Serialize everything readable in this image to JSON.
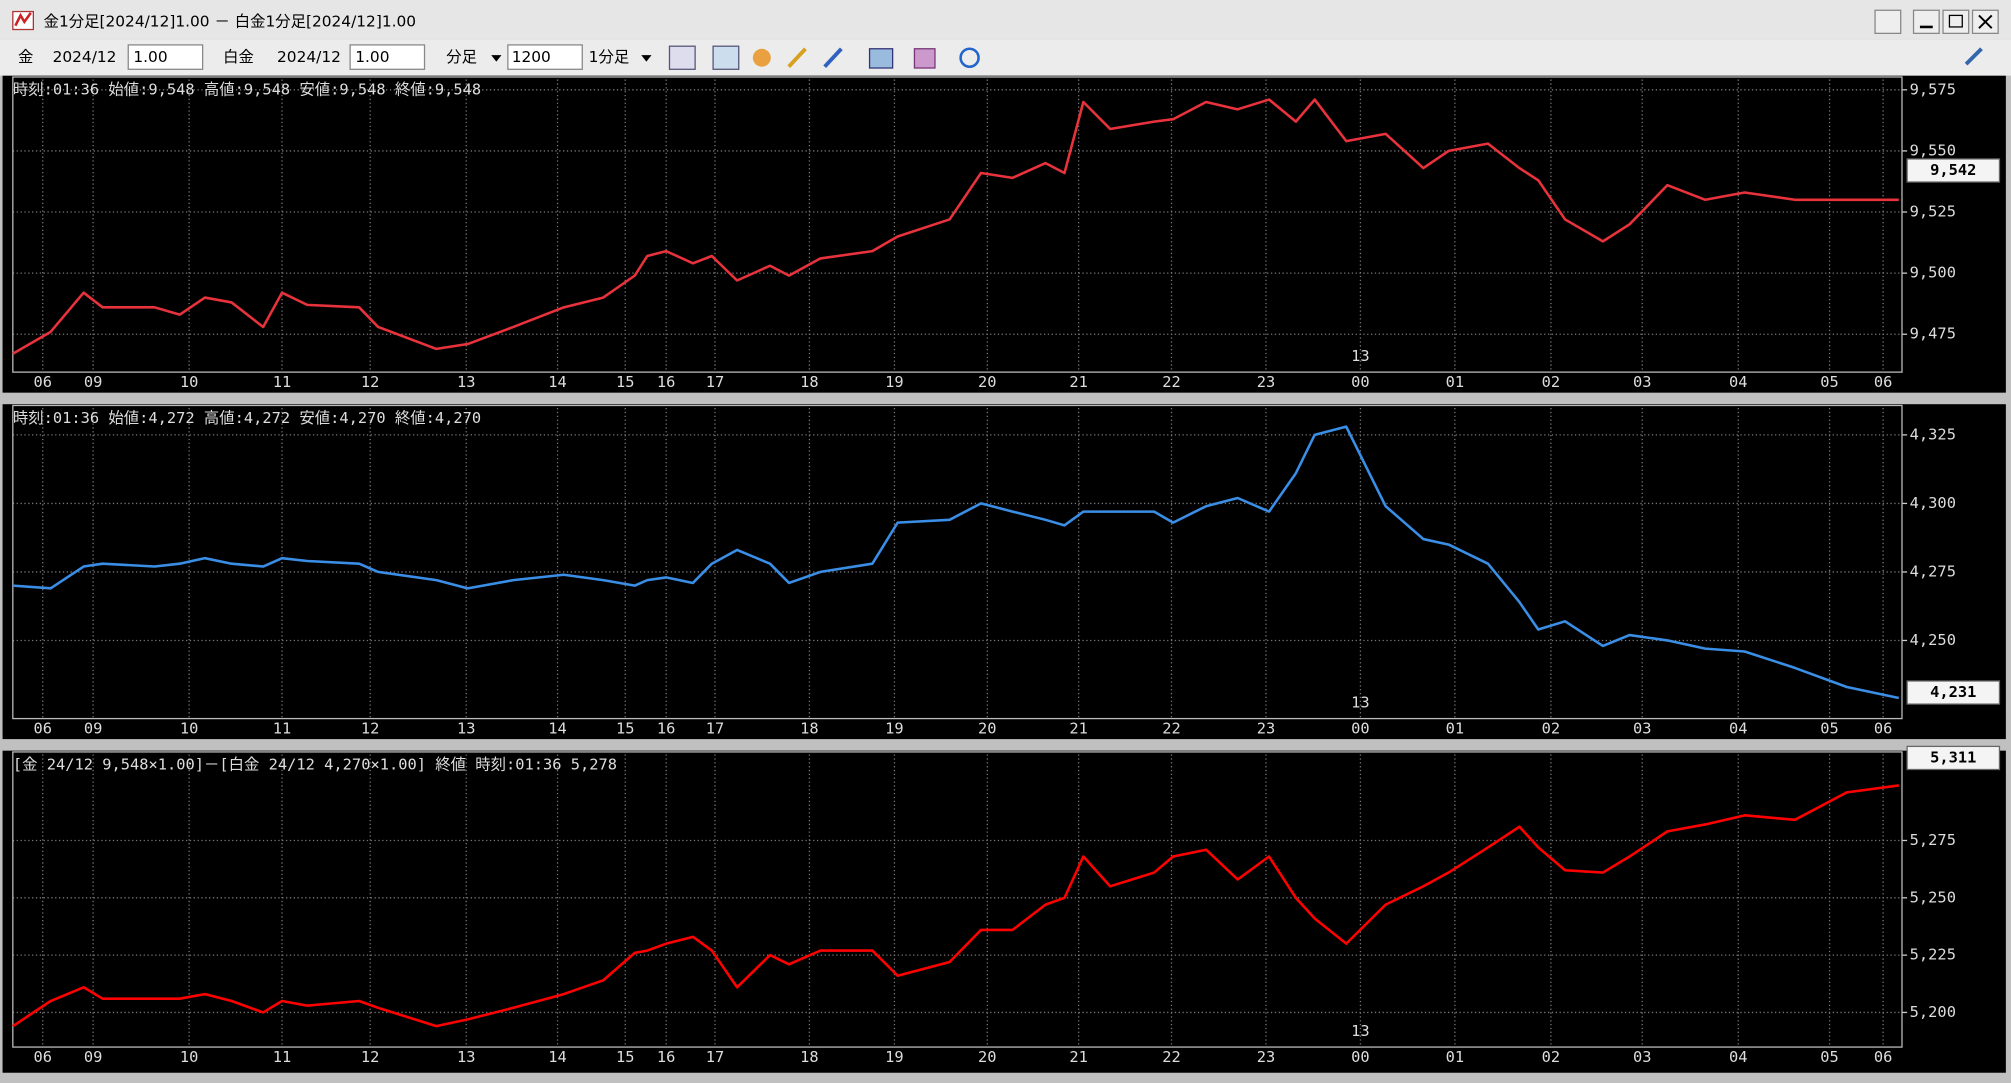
{
  "window": {
    "title": "金1分足[2024/12]1.00 － 白金1分足[2024/12]1.00"
  },
  "toolbar": {
    "gold_label": "金",
    "gold_month": "2024/12",
    "gold_ratio": "1.00",
    "plat_label": "白金",
    "plat_month": "2024/12",
    "plat_ratio": "1.00",
    "period_unit": "分足",
    "bar_count": "1200",
    "period": "1分足"
  },
  "chart_data": [
    {
      "type": "line",
      "title": "時刻:01:36 始値:9,548 高値:9,548 安値:9,548 終値:9,548",
      "x": [
        0,
        24,
        45,
        57,
        90,
        106,
        122,
        139,
        159,
        171,
        187,
        220,
        232,
        269,
        289,
        318,
        350,
        375,
        395,
        403,
        415,
        432,
        444,
        460,
        481,
        493,
        513,
        546,
        562,
        595,
        615,
        635,
        656,
        668,
        680,
        697,
        725,
        737,
        758,
        778,
        798,
        815,
        827,
        847,
        872,
        896,
        912,
        937,
        957,
        969,
        986,
        1010,
        1027,
        1051,
        1075,
        1100,
        1132,
        1165,
        1198
      ],
      "series": [
        {
          "color": "#e8323c",
          "values": [
            9467,
            9476,
            9492,
            9486,
            9486,
            9483,
            9490,
            9488,
            9478,
            9492,
            9487,
            9486,
            9478,
            9469,
            9471,
            9478,
            9486,
            9490,
            9499,
            9507,
            9509,
            9504,
            9507,
            9497,
            9503,
            9499,
            9506,
            9509,
            9515,
            9522,
            9541,
            9539,
            9545,
            9541,
            9570,
            9559,
            9562,
            9563,
            9570,
            9567,
            9571,
            9562,
            9571,
            9554,
            9557,
            9543,
            9550,
            9553,
            9543,
            9538,
            9522,
            9513,
            9520,
            9536,
            9530,
            9533,
            9530,
            9530,
            9530
          ]
        }
      ],
      "xlim": [
        0,
        1200
      ],
      "ylim": [
        9459.5,
        9579.2
      ],
      "xticks": [
        {
          "value": 19,
          "label": "06"
        },
        {
          "value": 51,
          "label": "09"
        },
        {
          "value": 112,
          "label": "10"
        },
        {
          "value": 171,
          "label": "11"
        },
        {
          "value": 227,
          "label": "12"
        },
        {
          "value": 288,
          "label": "13"
        },
        {
          "value": 346,
          "label": "14"
        },
        {
          "value": 389,
          "label": "15"
        },
        {
          "value": 415,
          "label": "16"
        },
        {
          "value": 446,
          "label": "17"
        },
        {
          "value": 506,
          "label": "18"
        },
        {
          "value": 560,
          "label": "19"
        },
        {
          "value": 619,
          "label": "20"
        },
        {
          "value": 677,
          "label": "21"
        },
        {
          "value": 736,
          "label": "22"
        },
        {
          "value": 796,
          "label": "23"
        },
        {
          "value": 856,
          "label": "00"
        },
        {
          "value": 916,
          "label": "01"
        },
        {
          "value": 977,
          "label": "02"
        },
        {
          "value": 1035,
          "label": "03"
        },
        {
          "value": 1096,
          "label": "04"
        },
        {
          "value": 1154,
          "label": "05"
        },
        {
          "value": 1188,
          "label": "06"
        }
      ],
      "yticks": [
        {
          "value": 9475,
          "label": "9,475"
        },
        {
          "value": 9500,
          "label": "9,500"
        },
        {
          "value": 9525,
          "label": "9,525"
        },
        {
          "value": 9550,
          "label": "9,550"
        },
        {
          "value": 9575,
          "label": "9,575"
        }
      ],
      "date_marker": "13",
      "price_label": {
        "value": 9542,
        "label": "9,542"
      },
      "grid": true
    },
    {
      "type": "line",
      "title": "時刻:01:36 始値:4,272 高値:4,272 安値:4,270 終値:4,270",
      "x": [
        0,
        24,
        45,
        57,
        90,
        106,
        122,
        139,
        159,
        171,
        187,
        220,
        232,
        269,
        289,
        318,
        350,
        375,
        395,
        403,
        415,
        432,
        444,
        460,
        481,
        493,
        513,
        546,
        562,
        595,
        615,
        635,
        656,
        668,
        680,
        697,
        725,
        737,
        758,
        778,
        798,
        815,
        827,
        847,
        872,
        896,
        912,
        937,
        957,
        969,
        986,
        1010,
        1027,
        1051,
        1075,
        1100,
        1132,
        1165,
        1198
      ],
      "series": [
        {
          "color": "#3a8ee6",
          "values": [
            4270,
            4269,
            4277,
            4278,
            4277,
            4278,
            4280,
            4278,
            4277,
            4280,
            4279,
            4278,
            4275,
            4272,
            4269,
            4272,
            4274,
            4272,
            4270,
            4272,
            4273,
            4271,
            4278,
            4283,
            4278,
            4271,
            4275,
            4278,
            4293,
            4294,
            4300,
            4297,
            4294,
            4292,
            4297,
            4297,
            4297,
            4293,
            4299,
            4302,
            4297,
            4311,
            4325,
            4328,
            4299,
            4287,
            4285,
            4278,
            4264,
            4254,
            4257,
            4248,
            4252,
            4250,
            4247,
            4246,
            4240,
            4233,
            4229
          ]
        }
      ],
      "xlim": [
        0,
        1200
      ],
      "ylim": [
        4221.5,
        4334.8
      ],
      "xticks": [
        {
          "value": 19,
          "label": "06"
        },
        {
          "value": 51,
          "label": "09"
        },
        {
          "value": 112,
          "label": "10"
        },
        {
          "value": 171,
          "label": "11"
        },
        {
          "value": 227,
          "label": "12"
        },
        {
          "value": 288,
          "label": "13"
        },
        {
          "value": 346,
          "label": "14"
        },
        {
          "value": 389,
          "label": "15"
        },
        {
          "value": 415,
          "label": "16"
        },
        {
          "value": 446,
          "label": "17"
        },
        {
          "value": 506,
          "label": "18"
        },
        {
          "value": 560,
          "label": "19"
        },
        {
          "value": 619,
          "label": "20"
        },
        {
          "value": 677,
          "label": "21"
        },
        {
          "value": 736,
          "label": "22"
        },
        {
          "value": 796,
          "label": "23"
        },
        {
          "value": 856,
          "label": "00"
        },
        {
          "value": 916,
          "label": "01"
        },
        {
          "value": 977,
          "label": "02"
        },
        {
          "value": 1035,
          "label": "03"
        },
        {
          "value": 1096,
          "label": "04"
        },
        {
          "value": 1154,
          "label": "05"
        },
        {
          "value": 1188,
          "label": "06"
        }
      ],
      "yticks": [
        {
          "value": 4250,
          "label": "4,250"
        },
        {
          "value": 4275,
          "label": "4,275"
        },
        {
          "value": 4300,
          "label": "4,300"
        },
        {
          "value": 4325,
          "label": "4,325"
        }
      ],
      "date_marker": "13",
      "price_label": {
        "value": 4231,
        "label": "4,231"
      },
      "grid": true
    },
    {
      "type": "line",
      "title": "[金 24/12 9,548×1.00]－[白金 24/12 4,270×1.00] 終値 時刻:01:36 5,278",
      "x": [
        0,
        24,
        45,
        57,
        90,
        106,
        122,
        139,
        159,
        171,
        187,
        220,
        232,
        269,
        289,
        318,
        350,
        375,
        395,
        403,
        415,
        432,
        444,
        460,
        481,
        493,
        513,
        546,
        562,
        595,
        615,
        635,
        656,
        668,
        680,
        697,
        725,
        737,
        758,
        778,
        798,
        815,
        827,
        847,
        872,
        896,
        912,
        937,
        957,
        969,
        986,
        1010,
        1027,
        1051,
        1075,
        1100,
        1132,
        1165,
        1198
      ],
      "series": [
        {
          "color": "#ff0000",
          "values": [
            5194,
            5205,
            5211,
            5206,
            5206,
            5206,
            5208,
            5205,
            5200,
            5205,
            5203,
            5205,
            5202,
            5194,
            5197,
            5202,
            5208,
            5214,
            5226,
            5227,
            5230,
            5233,
            5227,
            5211,
            5225,
            5221,
            5227,
            5227,
            5216,
            5222,
            5236,
            5236,
            5247,
            5250,
            5268,
            5255,
            5261,
            5268,
            5271,
            5258,
            5268,
            5250,
            5241,
            5230,
            5247,
            5255,
            5261,
            5272,
            5281,
            5272,
            5262,
            5261,
            5268,
            5279,
            5282,
            5286,
            5284,
            5296,
            5299
          ]
        }
      ],
      "xlim": [
        0,
        1200
      ],
      "ylim": [
        5184.9,
        5312.5
      ],
      "xticks": [
        {
          "value": 19,
          "label": "06"
        },
        {
          "value": 51,
          "label": "09"
        },
        {
          "value": 112,
          "label": "10"
        },
        {
          "value": 171,
          "label": "11"
        },
        {
          "value": 227,
          "label": "12"
        },
        {
          "value": 288,
          "label": "13"
        },
        {
          "value": 346,
          "label": "14"
        },
        {
          "value": 389,
          "label": "15"
        },
        {
          "value": 415,
          "label": "16"
        },
        {
          "value": 446,
          "label": "17"
        },
        {
          "value": 506,
          "label": "18"
        },
        {
          "value": 560,
          "label": "19"
        },
        {
          "value": 619,
          "label": "20"
        },
        {
          "value": 677,
          "label": "21"
        },
        {
          "value": 736,
          "label": "22"
        },
        {
          "value": 796,
          "label": "23"
        },
        {
          "value": 856,
          "label": "00"
        },
        {
          "value": 916,
          "label": "01"
        },
        {
          "value": 977,
          "label": "02"
        },
        {
          "value": 1035,
          "label": "03"
        },
        {
          "value": 1096,
          "label": "04"
        },
        {
          "value": 1154,
          "label": "05"
        },
        {
          "value": 1188,
          "label": "06"
        }
      ],
      "yticks": [
        {
          "value": 5200,
          "label": "5,200"
        },
        {
          "value": 5225,
          "label": "5,225"
        },
        {
          "value": 5250,
          "label": "5,250"
        },
        {
          "value": 5275,
          "label": "5,275"
        }
      ],
      "date_marker": "13",
      "price_label": {
        "value": 5311,
        "label": "5,311"
      },
      "grid": true
    }
  ]
}
